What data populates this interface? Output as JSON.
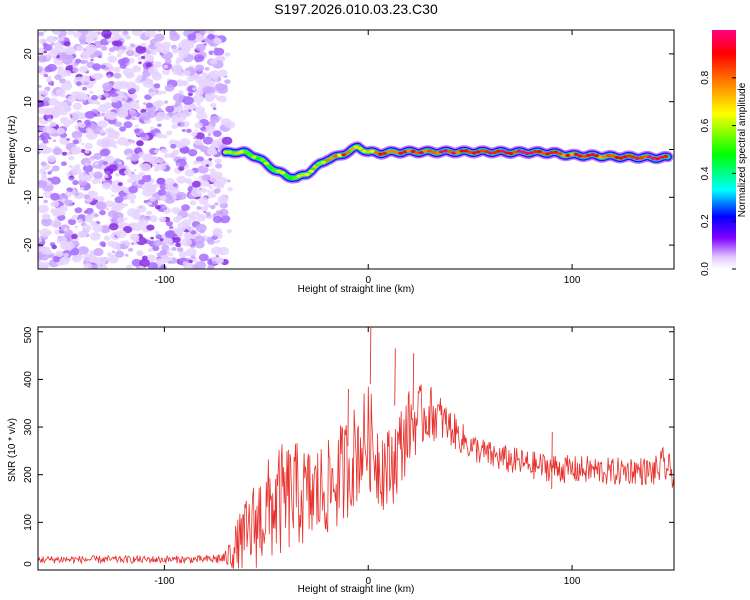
{
  "title": "S197.2026.010.03.23.C30",
  "chart_data": [
    {
      "type": "heatmap",
      "name": "spectrogram",
      "xlabel": "Height of straight line (km)",
      "ylabel": "Frequency (Hz)",
      "xlim": [
        -162,
        150
      ],
      "ylim": [
        -25,
        25
      ],
      "xticks": [
        -100,
        0,
        100
      ],
      "yticks": [
        20,
        10,
        0,
        -10,
        -20
      ],
      "noise_region_x": [
        -162,
        -70
      ],
      "ridge": {
        "x": [
          -70,
          -65,
          -60,
          -55,
          -50,
          -45,
          -40,
          -35,
          -30,
          -25,
          -20,
          -15,
          -10,
          -5,
          0,
          5,
          10,
          20,
          30,
          40,
          50,
          60,
          70,
          80,
          90,
          95,
          100,
          110,
          120,
          130,
          140,
          147
        ],
        "freq": [
          -0.8,
          -0.5,
          -0.7,
          -1.5,
          -3.0,
          -4.5,
          -5.5,
          -6.0,
          -5.0,
          -3.5,
          -2.0,
          -1.5,
          -0.5,
          0.5,
          -0.5,
          -0.8,
          -0.6,
          -0.5,
          -0.5,
          -0.5,
          -0.5,
          -0.5,
          -0.6,
          -0.6,
          -0.7,
          -1.0,
          -1.2,
          -1.3,
          -1.5,
          -1.6,
          -1.7,
          -1.7
        ],
        "amp": [
          0.55,
          0.6,
          0.5,
          0.55,
          0.6,
          0.55,
          0.5,
          0.6,
          0.55,
          0.6,
          0.7,
          0.75,
          0.8,
          0.7,
          0.7,
          0.8,
          0.85,
          0.85,
          0.85,
          0.9,
          0.85,
          0.9,
          0.95,
          0.95,
          0.9,
          0.85,
          0.85,
          0.85,
          0.85,
          0.9,
          0.95,
          0.9
        ]
      },
      "colorbar": {
        "label": "Normalized spectral amplitude",
        "range": [
          0,
          1
        ],
        "ticks": [
          "0.0",
          "0.2",
          "0.4",
          "0.6",
          "0.8"
        ],
        "colors": [
          "#ffffff",
          "#c080ff",
          "#8000ff",
          "#0000ff",
          "#00ffff",
          "#00ff00",
          "#ffff00",
          "#ff8000",
          "#ff0000",
          "#ff0080"
        ]
      }
    },
    {
      "type": "line",
      "name": "snr",
      "xlabel": "Height of straight line (km)",
      "ylabel": "SNR (10 * v/v)",
      "xlim": [
        -162,
        150
      ],
      "ylim": [
        0,
        510
      ],
      "xticks": [
        -100,
        0,
        100
      ],
      "yticks": [
        0,
        100,
        200,
        300,
        400,
        500
      ],
      "color": "#e8302c",
      "x": [
        -162,
        -140,
        -120,
        -100,
        -80,
        -70,
        -65,
        -60,
        -55,
        -50,
        -45,
        -40,
        -35,
        -30,
        -25,
        -20,
        -15,
        -10,
        -5,
        0,
        5,
        10,
        15,
        20,
        25,
        30,
        35,
        40,
        50,
        60,
        70,
        80,
        90,
        100,
        110,
        120,
        130,
        140,
        145,
        150
      ],
      "mean": [
        22,
        22,
        22,
        22,
        22,
        25,
        40,
        70,
        100,
        120,
        140,
        150,
        160,
        150,
        160,
        170,
        190,
        220,
        250,
        280,
        230,
        210,
        250,
        300,
        320,
        330,
        320,
        300,
        260,
        240,
        230,
        220,
        215,
        210,
        210,
        205,
        210,
        205,
        220,
        200
      ],
      "amp": [
        8,
        8,
        8,
        8,
        8,
        15,
        60,
        80,
        100,
        110,
        120,
        120,
        110,
        110,
        110,
        100,
        110,
        110,
        110,
        110,
        100,
        90,
        90,
        80,
        70,
        60,
        50,
        40,
        30,
        30,
        30,
        30,
        30,
        30,
        30,
        30,
        30,
        30,
        40,
        30
      ],
      "peaks": [
        {
          "x": 1,
          "y": 510
        },
        {
          "x": 13,
          "y": 465
        },
        {
          "x": 22,
          "y": 455
        },
        {
          "x": -10,
          "y": 380
        },
        {
          "x": 90,
          "y": 290
        }
      ]
    }
  ]
}
